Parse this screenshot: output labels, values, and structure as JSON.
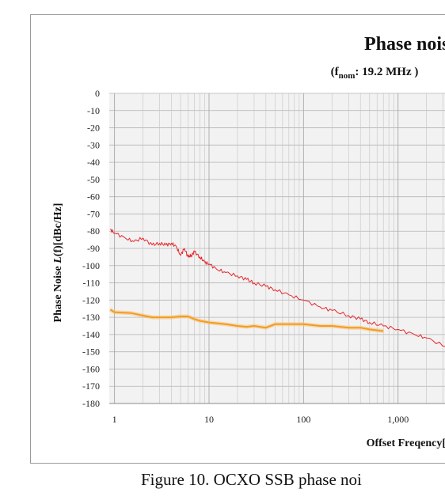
{
  "caption": "Figure 10. OCXO SSB phase noi",
  "chart_data": {
    "type": "line",
    "title": "Phase noise",
    "subtitle": {
      "prefix": "(f",
      "subscript": "nom",
      "suffix": ": 19.2 MHz )"
    },
    "ylabel": {
      "prefix": "Phase Noise ",
      "italic": "L",
      "suffix": "(f)[dBc/Hz]"
    },
    "xlabel": "Offset Freqency[",
    "x_scale": "log",
    "xlim": [
      0.88,
      3200
    ],
    "ylim": [
      -180,
      0
    ],
    "grid": true,
    "y_ticks": [
      "0",
      "-10",
      "-20",
      "-30",
      "-40",
      "-50",
      "-60",
      "-70",
      "-80",
      "-90",
      "-100",
      "-110",
      "-120",
      "-130",
      "-140",
      "-150",
      "-160",
      "-170",
      "-180"
    ],
    "x_ticks": [
      {
        "value": 1,
        "label": "1"
      },
      {
        "value": 10,
        "label": "10"
      },
      {
        "value": 100,
        "label": "100"
      },
      {
        "value": 1000,
        "label": "1,000"
      }
    ],
    "series": [
      {
        "color": "#e8262a",
        "x": [
          0.9,
          1,
          1.3,
          1.6,
          2,
          2.5,
          3,
          3.5,
          4,
          4.5,
          5,
          5.5,
          6,
          6.5,
          7,
          8,
          9,
          10,
          12,
          15,
          20,
          25,
          30,
          40,
          50,
          70,
          100,
          150,
          200,
          300,
          400,
          500,
          700,
          1000,
          1500,
          2000,
          3200
        ],
        "y": [
          -79,
          -81,
          -84,
          -86,
          -84,
          -88,
          -87,
          -88,
          -87,
          -89,
          -94,
          -90,
          -95,
          -94,
          -92,
          -95,
          -98,
          -99,
          -102,
          -104,
          -106,
          -108,
          -110,
          -112,
          -114,
          -117,
          -120,
          -124,
          -126,
          -129,
          -131,
          -133,
          -135,
          -137,
          -140,
          -142,
          -147
        ]
      },
      {
        "color": "#f39c1f",
        "x": [
          0.9,
          1,
          1.5,
          2,
          2.5,
          3,
          4,
          5,
          6,
          7,
          8,
          10,
          15,
          20,
          25,
          30,
          40,
          50,
          70,
          100,
          150,
          200,
          300,
          400,
          500,
          700
        ],
        "y": [
          -125.5,
          -127,
          -127.5,
          -129,
          -130,
          -130,
          -130,
          -129.5,
          -129.5,
          -131,
          -132,
          -133,
          -134,
          -135,
          -135.5,
          -135,
          -136,
          -134,
          -134,
          -134,
          -135,
          -135,
          -136,
          -136,
          -137,
          -138
        ]
      }
    ]
  }
}
